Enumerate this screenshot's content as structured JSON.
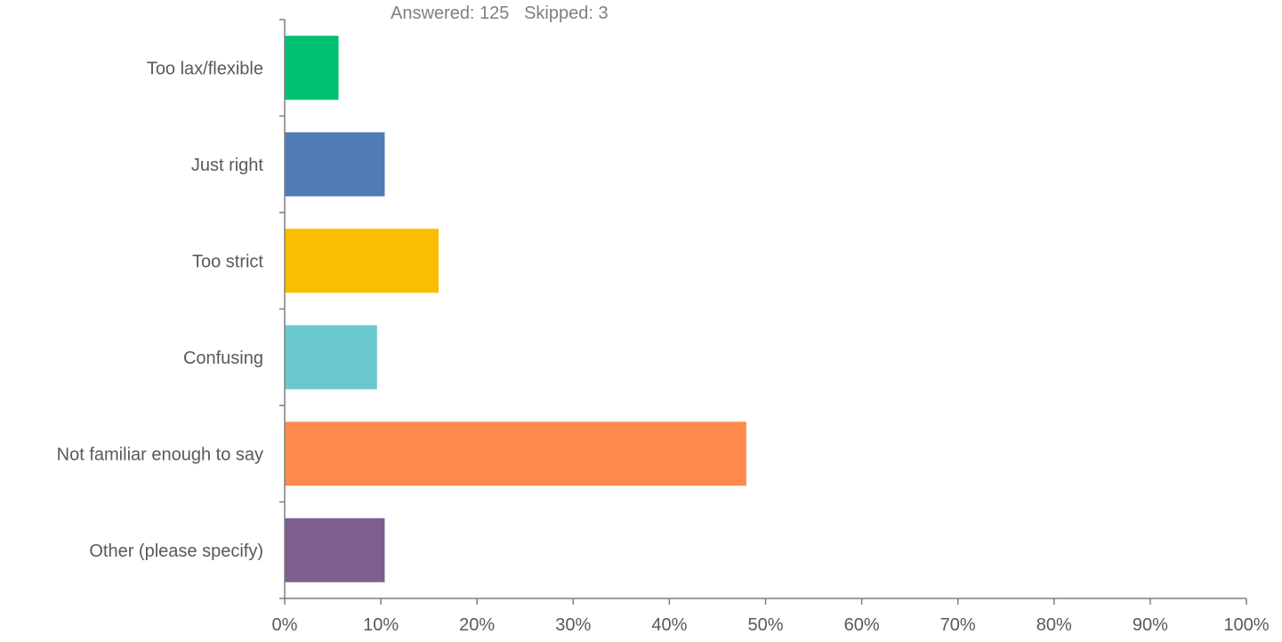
{
  "chart_data": {
    "type": "bar",
    "orientation": "horizontal",
    "title": "",
    "subtitle": "Answered: 125   Skipped: 3",
    "xlabel": "",
    "ylabel": "",
    "xlim": [
      0,
      100
    ],
    "x_ticks": [
      "0%",
      "10%",
      "20%",
      "30%",
      "40%",
      "50%",
      "60%",
      "70%",
      "80%",
      "90%",
      "100%"
    ],
    "grid": false,
    "legend": "none",
    "categories": [
      "Too lax/flexible",
      "Just right",
      "Too strict",
      "Confusing",
      "Not familiar enough to say",
      "Other (please specify)"
    ],
    "values": [
      5.6,
      10.4,
      16.0,
      9.6,
      48.0,
      10.4
    ],
    "colors": [
      "#00bf6f",
      "#507cb6",
      "#f9be00",
      "#6bc8cd",
      "#ff8b4f",
      "#7d5e90"
    ],
    "axis_color": "#7f7f7f",
    "label_color": "#595959"
  }
}
